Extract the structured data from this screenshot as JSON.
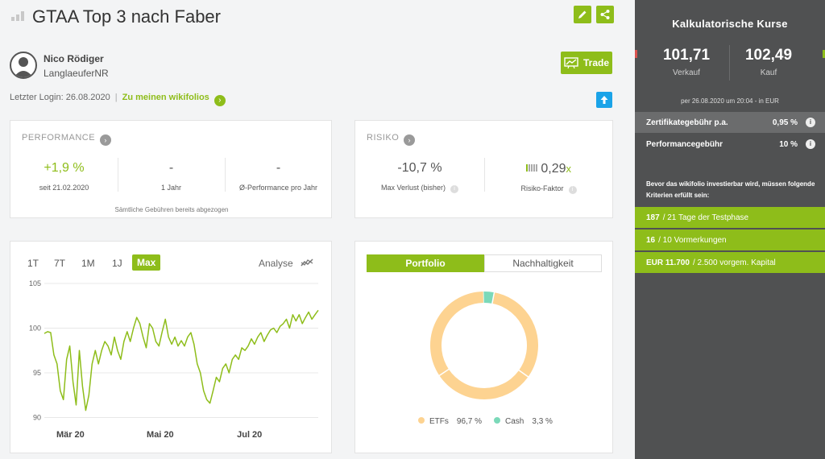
{
  "header": {
    "title": "GTAA Top 3 nach Faber",
    "user_name": "Nico Rödiger",
    "user_nick": "LanglaeuferNR",
    "last_login": "Letzter Login: 26.08.2020",
    "wikifolios_link": "Zu meinen wikifolios",
    "trade_label": "Trade"
  },
  "performance": {
    "title": "PERFORMANCE",
    "items": [
      {
        "value": "+1,9 %",
        "label": "seit 21.02.2020"
      },
      {
        "value": "-",
        "label": "1 Jahr"
      },
      {
        "value": "-",
        "label": "Ø-Performance pro Jahr"
      }
    ],
    "note": "Sämtliche Gebühren bereits abgezogen"
  },
  "risk": {
    "title": "RISIKO",
    "max_loss": {
      "value": "-10,7 %",
      "label": "Max Verlust (bisher)"
    },
    "risk_factor": {
      "value": "0,29",
      "unit": "x",
      "label": "Risiko-Faktor"
    }
  },
  "chart": {
    "timeframes": [
      "1T",
      "7T",
      "1M",
      "1J",
      "Max"
    ],
    "active_timeframe": "Max",
    "analyse_label": "Analyse"
  },
  "chart_data": {
    "type": "line",
    "title": "",
    "xlabel": "",
    "ylabel": "",
    "ylim": [
      89.5,
      105
    ],
    "yticks": [
      90,
      95,
      100,
      105
    ],
    "xtick_labels": [
      "Mär 20",
      "Mai 20",
      "Jul 20"
    ],
    "xtick_positions": [
      8,
      68,
      128
    ],
    "x_range": [
      0,
      182
    ],
    "grid": true,
    "color": "#8ebd1a",
    "series": [
      {
        "values": [
          99.4,
          99.6,
          99.5,
          97.0,
          96.0,
          93.0,
          92.0,
          96.5,
          98.0,
          94.0,
          91.4,
          97.5,
          93.5,
          90.8,
          92.5,
          96.0,
          97.5,
          96.0,
          97.5,
          98.5,
          98.0,
          97.0,
          99.0,
          97.5,
          96.5,
          98.5,
          99.6,
          98.5,
          100.0,
          101.2,
          100.5,
          99.0,
          97.8,
          100.5,
          100.0,
          98.5,
          98.0,
          99.6,
          101.0,
          99.0,
          98.2,
          99.0,
          98.0,
          98.6,
          98.0,
          99.0,
          99.5,
          98.2,
          96.0,
          95.0,
          93.0,
          92.0,
          91.6,
          93.0,
          94.5,
          94.0,
          95.5,
          96.0,
          95.0,
          96.5,
          97.0,
          96.5,
          97.8,
          97.5,
          98.0,
          98.8,
          98.2,
          99.0,
          99.5,
          98.5,
          99.2,
          99.8,
          100.0,
          99.5,
          100.2,
          100.5,
          101.0,
          100.0,
          101.5,
          100.8,
          101.5,
          100.5,
          101.2,
          101.8,
          101.0,
          101.5,
          102.0
        ]
      }
    ]
  },
  "portfolio": {
    "tabs": [
      "Portfolio",
      "Nachhaltigkeit"
    ],
    "active_tab": "Portfolio",
    "slices": [
      {
        "name": "ETFs",
        "percent_label": "96,7 %",
        "value": 96.7,
        "color": "#fdd391"
      },
      {
        "name": "Cash",
        "percent_label": "3,3 %",
        "value": 3.3,
        "color": "#7bd9b9"
      }
    ]
  },
  "sidebar": {
    "title": "Kalkulatorische Kurse",
    "sell": {
      "value": "101,71",
      "label": "Verkauf"
    },
    "buy": {
      "value": "102,49",
      "label": "Kauf"
    },
    "date_note": "per 26.08.2020 um 20:04 - in EUR",
    "fees": [
      {
        "label": "Zertifikategebühr p.a.",
        "value": "0,95 %"
      },
      {
        "label": "Performancegebühr",
        "value": "10 %"
      }
    ],
    "criteria_note": "Bevor das wikifolio investierbar wird, müssen folgende Kriterien erfüllt sein:",
    "criteria": [
      {
        "bold": "187",
        "text": "/ 21 Tage der Testphase"
      },
      {
        "bold": "16",
        "text": "/ 10 Vormerkungen"
      },
      {
        "bold": "EUR 11.700",
        "text": "/ 2.500 vorgem. Kapital"
      }
    ]
  }
}
